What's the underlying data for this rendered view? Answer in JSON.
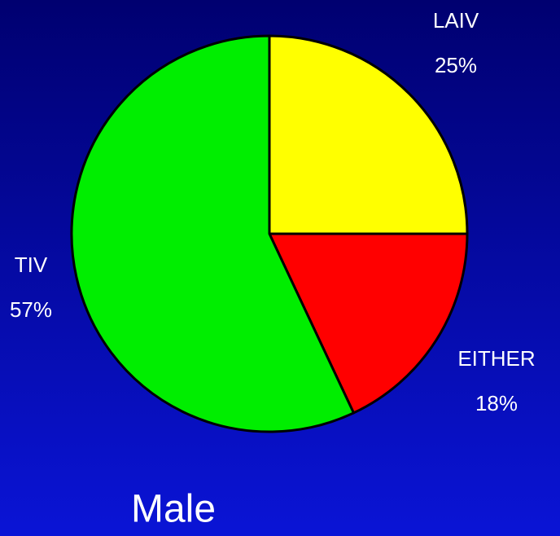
{
  "chart_data": {
    "type": "pie",
    "title": "Male",
    "categories": [
      "LAIV",
      "EITHER",
      "TIV"
    ],
    "values": [
      25,
      18,
      57
    ],
    "value_labels": [
      "25%",
      "18%",
      "57%"
    ],
    "colors": [
      "#ffff00",
      "#ff0000",
      "#00ee00"
    ]
  }
}
